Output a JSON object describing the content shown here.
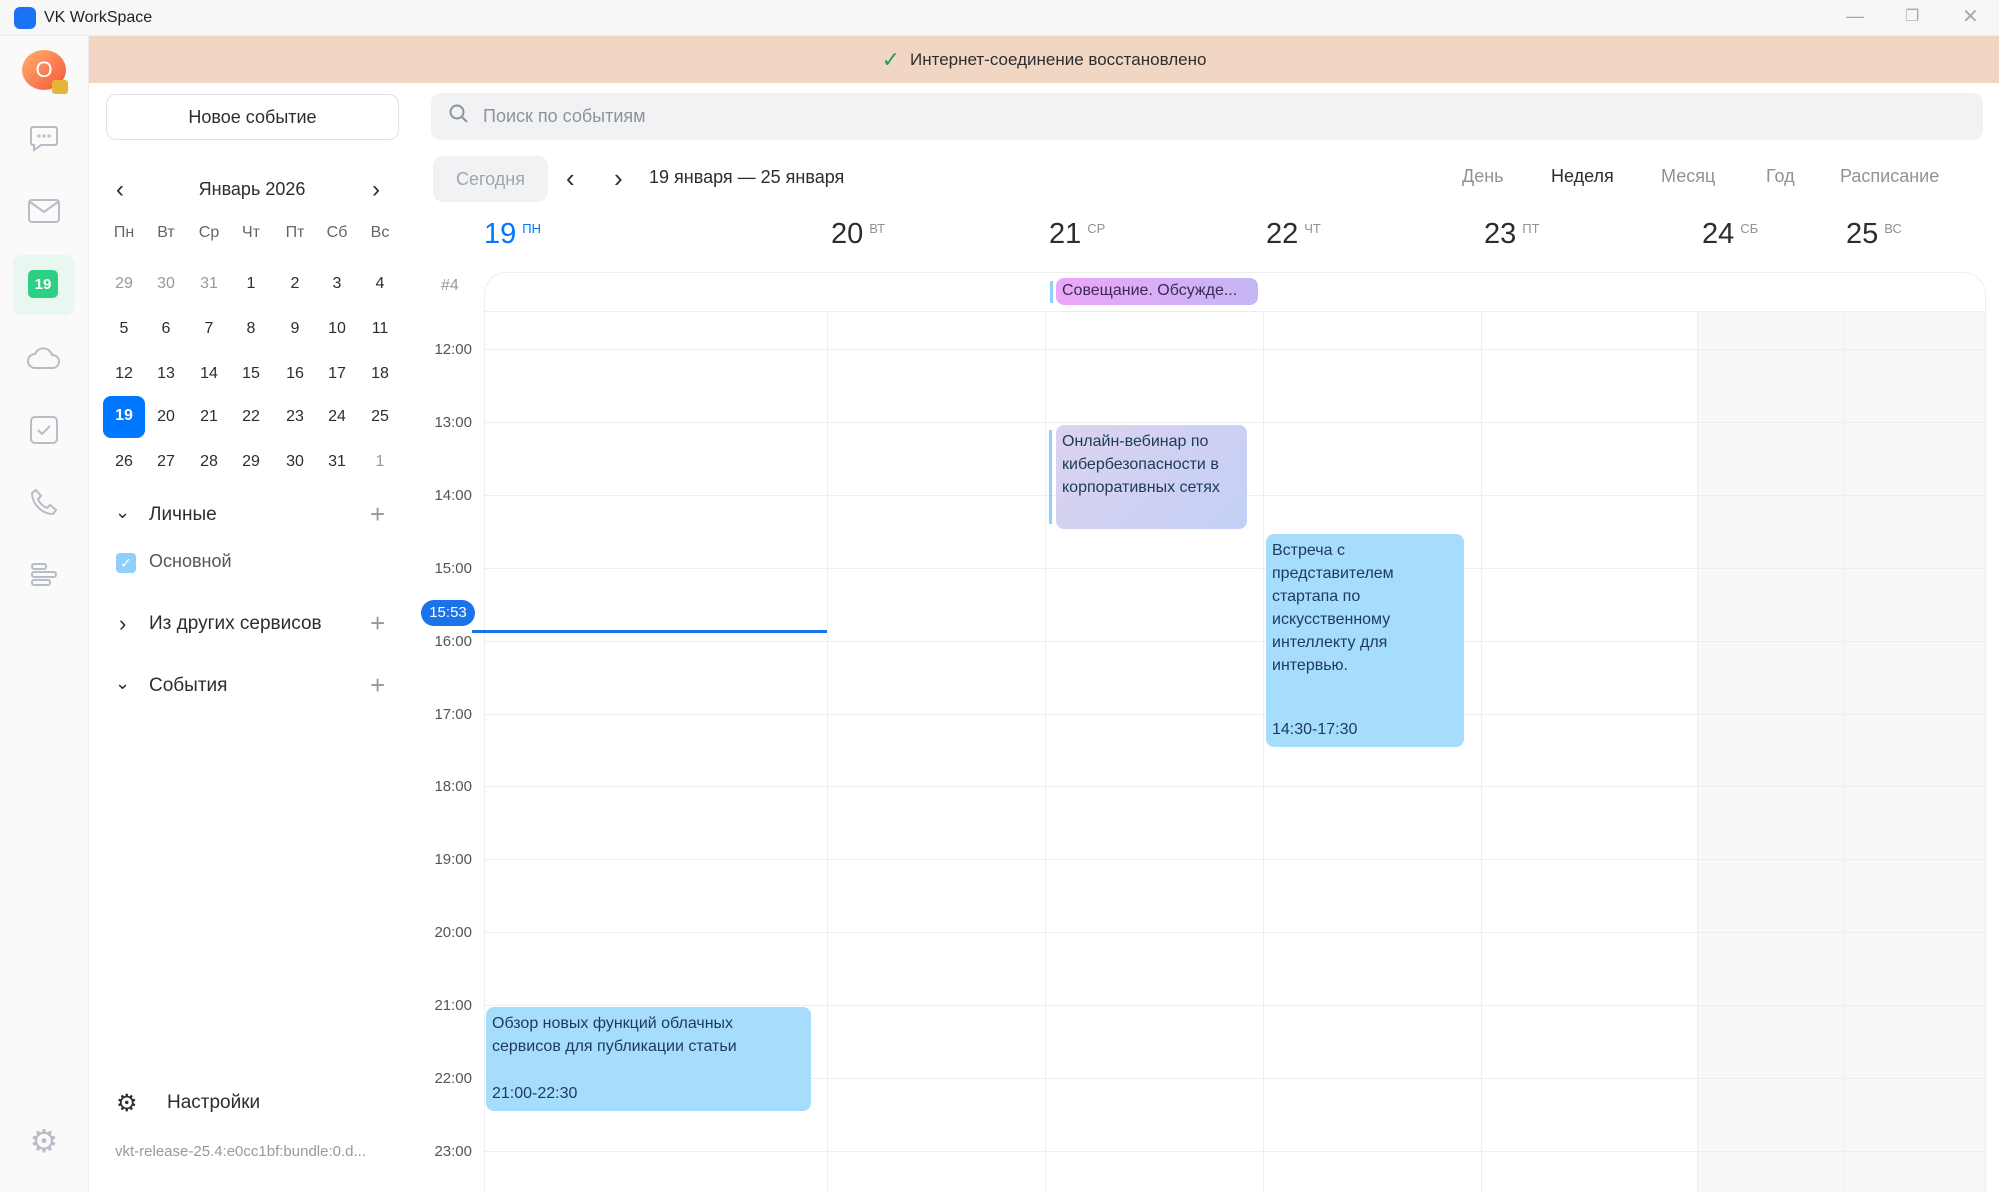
{
  "app": {
    "title": "VK WorkSpace"
  },
  "rail": {
    "avatar_letter": "О",
    "calendar_day": "19",
    "items": [
      "chat-icon",
      "mail-icon",
      "calendar-icon",
      "cloud-icon",
      "tasks-icon",
      "phone-icon",
      "list-icon",
      "settings-icon"
    ]
  },
  "banner": {
    "text": "Интернет-соединение восстановлено"
  },
  "sidebar": {
    "new_event": "Новое событие",
    "month_title": "Январь 2026",
    "weekdays": [
      "Пн",
      "Вт",
      "Ср",
      "Чт",
      "Пт",
      "Сб",
      "Вс"
    ],
    "weeks": [
      [
        "29",
        "30",
        "31",
        "1",
        "2",
        "3",
        "4"
      ],
      [
        "5",
        "6",
        "7",
        "8",
        "9",
        "10",
        "11"
      ],
      [
        "12",
        "13",
        "14",
        "15",
        "16",
        "17",
        "18"
      ],
      [
        "19",
        "20",
        "21",
        "22",
        "23",
        "24",
        "25"
      ],
      [
        "26",
        "27",
        "28",
        "29",
        "30",
        "31",
        "1"
      ]
    ],
    "selected": "19",
    "sections": [
      {
        "label": "Личные",
        "expanded": true
      },
      {
        "label": "Из других сервисов",
        "expanded": false
      },
      {
        "label": "События",
        "expanded": true
      }
    ],
    "calendar_item": "Основной",
    "settings": "Настройки",
    "version": "vkt-release-25.4:e0cc1bf:bundle:0.d..."
  },
  "search": {
    "placeholder": "Поиск по событиям"
  },
  "toolbar": {
    "today": "Сегодня",
    "range": "19 января — 25 января",
    "views": [
      "День",
      "Неделя",
      "Месяц",
      "Год",
      "Расписание"
    ],
    "active_view": "Неделя"
  },
  "week": {
    "week_number": "#4",
    "days": [
      {
        "num": "19",
        "dow": "ПН",
        "today": true
      },
      {
        "num": "20",
        "dow": "ВТ"
      },
      {
        "num": "21",
        "dow": "СР"
      },
      {
        "num": "22",
        "dow": "ЧТ"
      },
      {
        "num": "23",
        "dow": "ПТ"
      },
      {
        "num": "24",
        "dow": "СБ"
      },
      {
        "num": "25",
        "dow": "ВС"
      }
    ],
    "hours": [
      "12:00",
      "13:00",
      "14:00",
      "15:00",
      "16:00",
      "17:00",
      "18:00",
      "19:00",
      "20:00",
      "21:00",
      "22:00",
      "23:00"
    ],
    "now": "15:53",
    "allday_event": "Совещание. Обсужде...",
    "events": [
      {
        "title": "Онлайн-вебинар по кибербезопасности в корпоративных сетях",
        "time": ""
      },
      {
        "title": "Встреча с представителем стартапа по искусственному интеллекту для интервью.",
        "time": "14:30-17:30"
      },
      {
        "title": "Обзор новых функций облачных сервисов для публикации статьи",
        "time": "21:00-22:30"
      }
    ]
  },
  "colors": {
    "accent": "#0077ff",
    "banner": "#f2d6c4",
    "event_blue": "#a6dcfc",
    "calendar_green": "#2dcf85"
  }
}
